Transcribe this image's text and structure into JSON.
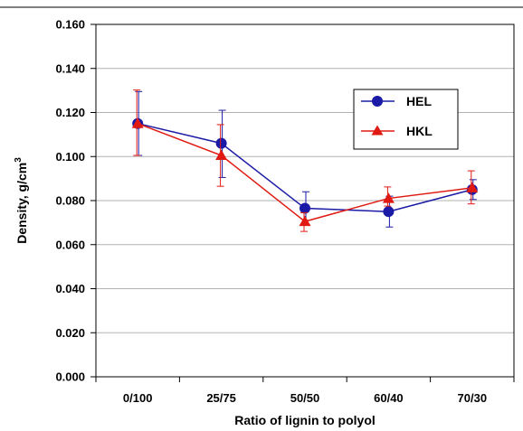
{
  "chart_data": {
    "type": "line",
    "categories": [
      "0/100",
      "25/75",
      "50/50",
      "60/40",
      "70/30"
    ],
    "xlabel": "Ratio of lignin to polyol",
    "ylabel": "Density, g/cm",
    "ylabel_superscript": "3",
    "ylim": [
      0,
      0.16
    ],
    "yticks": [
      "0.000",
      "0.020",
      "0.040",
      "0.060",
      "0.080",
      "0.100",
      "0.120",
      "0.140",
      "0.160"
    ],
    "grid": "horizontal",
    "legend": "top-right",
    "series": [
      {
        "name": "HEL",
        "color": "#1a1aa6",
        "marker": "circle",
        "values": [
          0.115,
          0.106,
          0.0765,
          0.075,
          0.085
        ],
        "err_low": [
          0.1005,
          0.0905,
          0.071,
          0.068,
          0.0805
        ],
        "err_high": [
          0.1295,
          0.121,
          0.084,
          0.082,
          0.0895
        ]
      },
      {
        "name": "HKL",
        "color": "#e01a12",
        "marker": "triangle",
        "values": [
          0.115,
          0.1005,
          0.0705,
          0.081,
          0.0858
        ],
        "err_low": [
          0.1005,
          0.0865,
          0.066,
          0.0775,
          0.0785
        ],
        "err_high": [
          0.1302,
          0.1145,
          0.0745,
          0.0862,
          0.0935
        ]
      }
    ]
  }
}
